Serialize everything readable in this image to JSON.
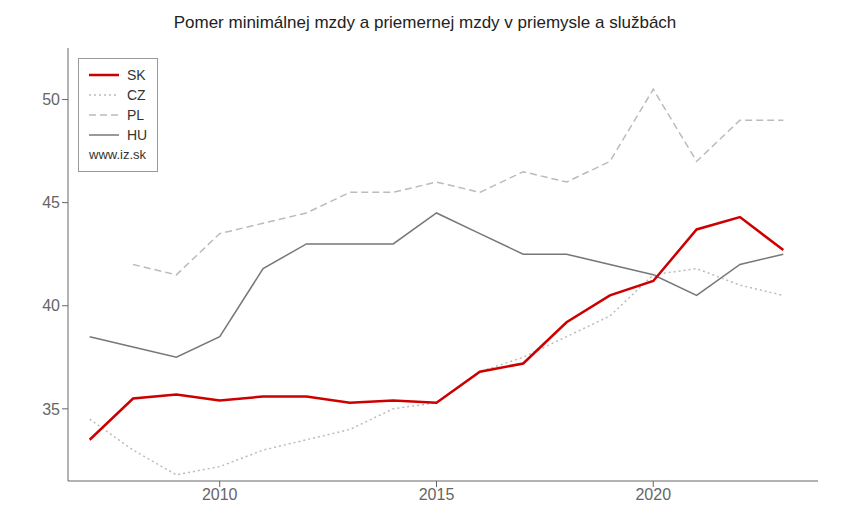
{
  "chart_data": {
    "type": "line",
    "title": "Pomer minimálnej mzdy a priemernej mzdy v priemysle a službách",
    "x": [
      2007,
      2008,
      2009,
      2010,
      2011,
      2012,
      2013,
      2014,
      2015,
      2016,
      2017,
      2018,
      2019,
      2020,
      2021,
      2022,
      2023
    ],
    "series": [
      {
        "name": "SK",
        "color": "#CC0000",
        "line_style": "solid",
        "values": [
          33.5,
          35.5,
          35.7,
          35.4,
          35.6,
          35.6,
          35.3,
          35.4,
          35.3,
          36.8,
          37.2,
          39.2,
          40.5,
          41.2,
          43.7,
          44.3,
          42.7
        ]
      },
      {
        "name": "CZ",
        "color": "#BBBBBB",
        "line_style": "dotted",
        "values": [
          34.5,
          33.0,
          31.8,
          32.2,
          33.0,
          33.5,
          34.0,
          35.0,
          35.3,
          36.8,
          37.5,
          38.5,
          39.5,
          41.5,
          41.8,
          41.0,
          40.5
        ]
      },
      {
        "name": "PL",
        "color": "#BBBBBB",
        "line_style": "dashed",
        "values": [
          null,
          42.0,
          41.5,
          43.5,
          44.0,
          44.5,
          45.5,
          45.5,
          46.0,
          45.5,
          46.5,
          46.0,
          47.0,
          50.5,
          47.0,
          49.0,
          49.0
        ]
      },
      {
        "name": "HU",
        "color": "#777777",
        "line_style": "solid",
        "values": [
          38.5,
          38.0,
          37.5,
          38.5,
          41.8,
          43.0,
          43.0,
          43.0,
          44.5,
          43.5,
          42.5,
          42.5,
          42.0,
          41.5,
          40.5,
          42.0,
          42.5
        ]
      }
    ],
    "annotations": [
      "www.iz.sk"
    ],
    "xlim": [
      2006.5,
      2023.8
    ],
    "xticks": [
      2010,
      2015,
      2020
    ],
    "ylim": [
      31.5,
      52.5
    ],
    "yticks": [
      35,
      40,
      45,
      50
    ],
    "grid": false,
    "legend": "upper left"
  }
}
